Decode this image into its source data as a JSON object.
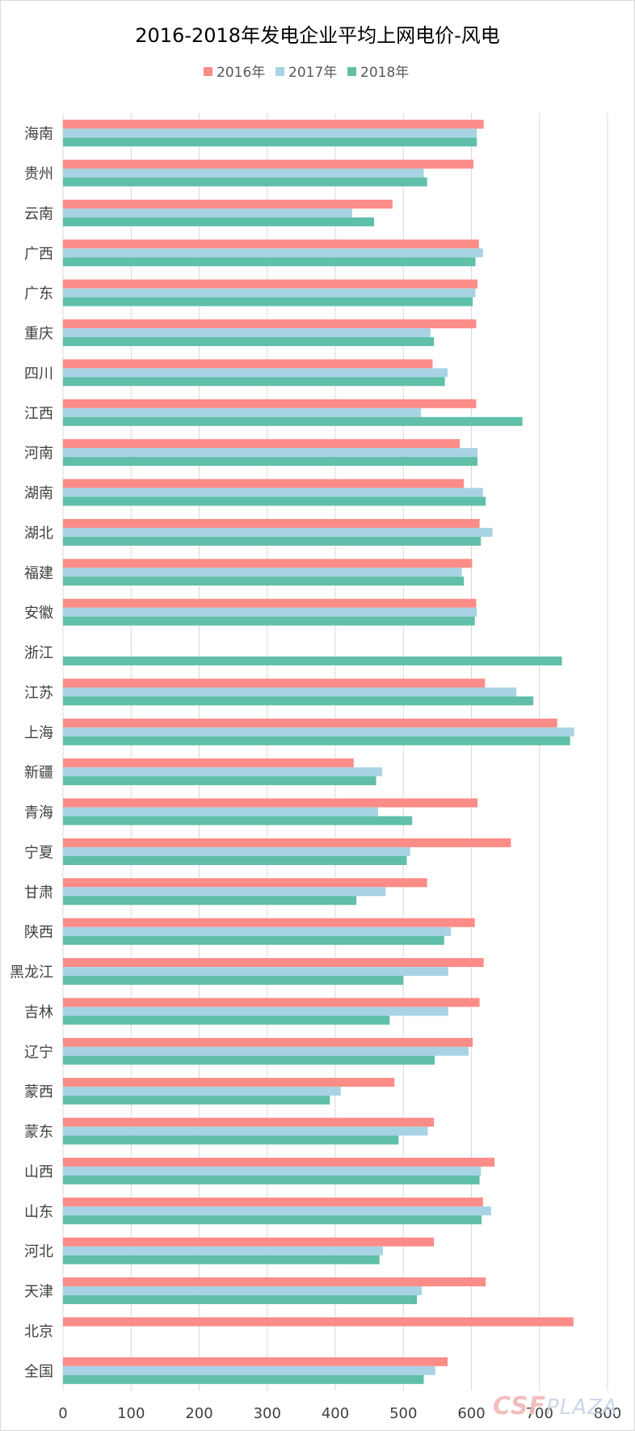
{
  "chart_data": {
    "type": "bar",
    "orientation": "horizontal",
    "title": "2016-2018年发电企业平均上网电价-风电",
    "xlabel": "",
    "ylabel": "",
    "xlim": [
      0,
      800
    ],
    "x_ticks": [
      0,
      100,
      200,
      300,
      400,
      500,
      600,
      700,
      800
    ],
    "grid": true,
    "legend_position": "top",
    "categories": [
      "海南",
      "贵州",
      "云南",
      "广西",
      "广东",
      "重庆",
      "四川",
      "江西",
      "河南",
      "湖南",
      "湖北",
      "福建",
      "安徽",
      "浙江",
      "江苏",
      "上海",
      "新疆",
      "青海",
      "宁夏",
      "甘肃",
      "陕西",
      "黑龙江",
      "吉林",
      "辽宁",
      "蒙西",
      "蒙东",
      "山西",
      "山东",
      "河北",
      "天津",
      "北京",
      "全国"
    ],
    "series": [
      {
        "name": "2016年",
        "color": "#fb8c87",
        "values": [
          618,
          603,
          484,
          611,
          609,
          607,
          543,
          607,
          583,
          589,
          612,
          601,
          607,
          null,
          620,
          726,
          427,
          609,
          658,
          535,
          605,
          618,
          612,
          602,
          487,
          545,
          634,
          617,
          545,
          621,
          750,
          565
        ]
      },
      {
        "name": "2017年",
        "color": "#a8d3e4",
        "values": [
          608,
          530,
          425,
          617,
          606,
          540,
          565,
          526,
          609,
          617,
          631,
          586,
          608,
          null,
          666,
          751,
          469,
          463,
          510,
          474,
          570,
          566,
          566,
          596,
          408,
          536,
          614,
          629,
          470,
          527,
          null,
          547
        ]
      },
      {
        "name": "2018年",
        "color": "#5fbfa8",
        "values": [
          608,
          535,
          457,
          606,
          602,
          545,
          561,
          675,
          609,
          621,
          614,
          589,
          605,
          733,
          691,
          745,
          460,
          513,
          505,
          431,
          560,
          500,
          480,
          546,
          392,
          493,
          612,
          615,
          465,
          520,
          null,
          530
        ]
      }
    ]
  },
  "watermark": {
    "brand": "CSF",
    "suffix": "PLAZA"
  }
}
